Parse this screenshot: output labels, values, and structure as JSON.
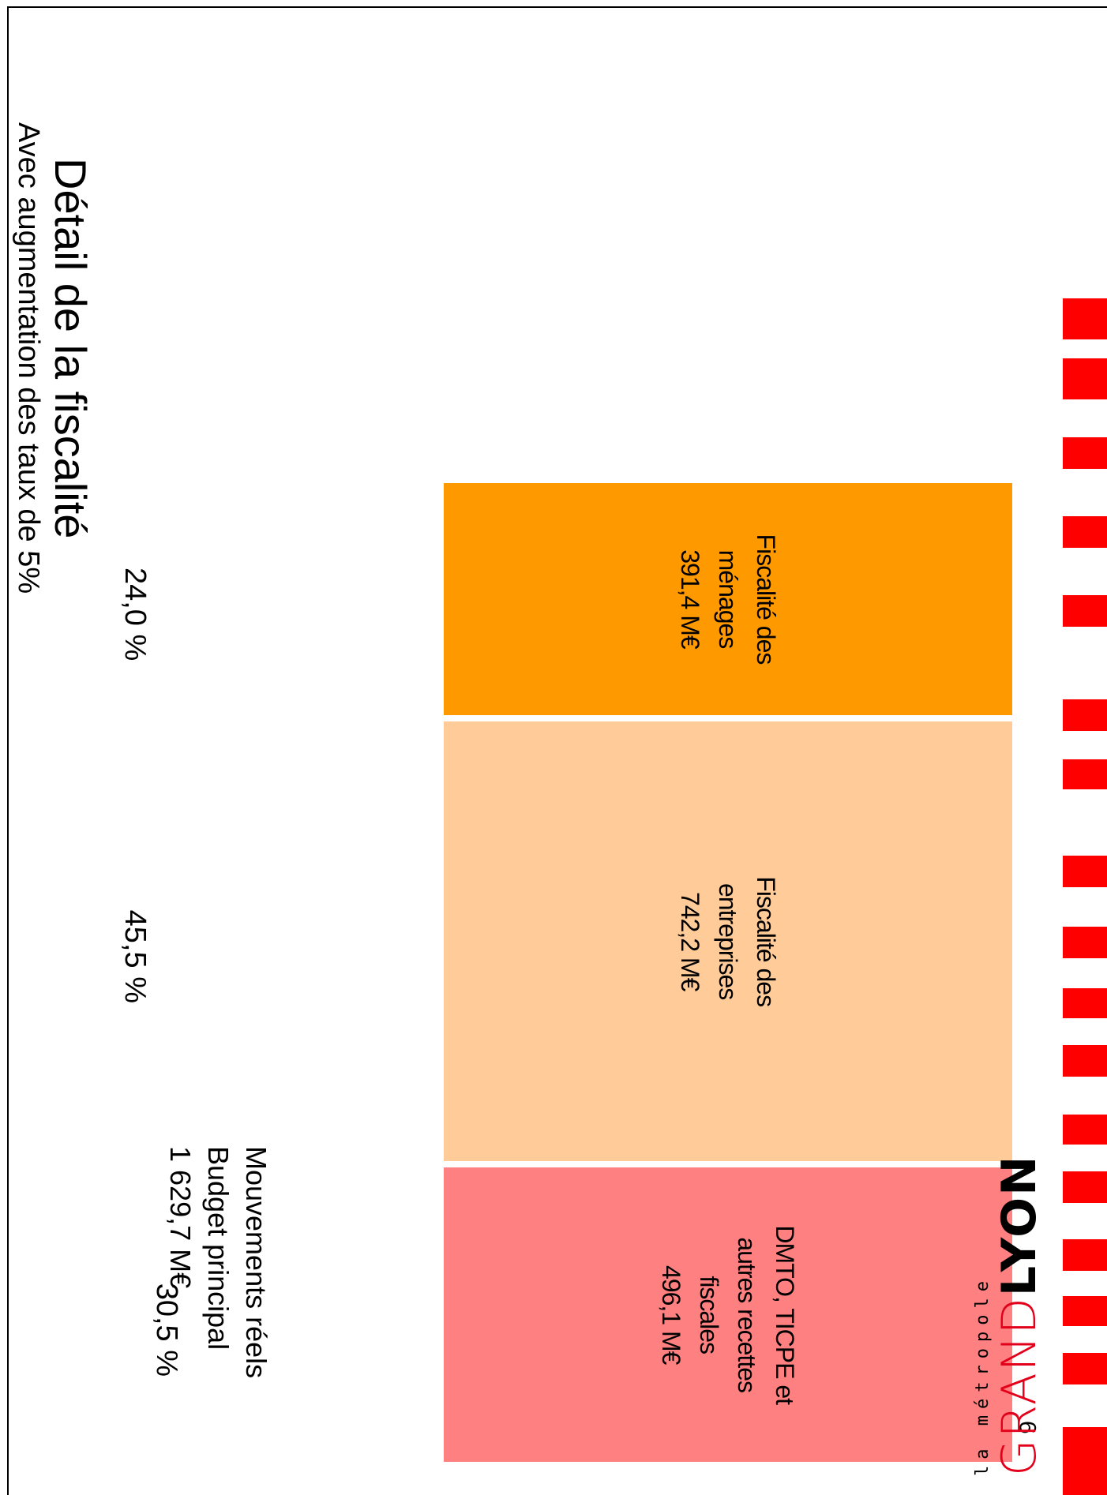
{
  "slide": {
    "title": "Détail de la fiscalité",
    "subtitle": "Avec augmentation des taux de 5%",
    "header_lines": [
      "Mouvements réels",
      "Budget principal",
      "1 629,7 M€"
    ],
    "page_number": "9",
    "logo": {
      "sub": "la métropole",
      "grand": "GRAND",
      "lyon": "LYON"
    }
  },
  "colors": {
    "menages": "#ff9900",
    "entreprises": "#ffcc99",
    "dmto": "#ff8080",
    "stripe": "#ff0000",
    "brand_red": "#e2001a"
  },
  "chart_data": {
    "type": "bar",
    "stacked": true,
    "total": {
      "label": "Budget principal",
      "value": 1629.7,
      "unit": "M€"
    },
    "segments": [
      {
        "lines": [
          "Fiscalité des",
          "ménages",
          "391,4 M€"
        ],
        "value": 391.4,
        "percent_label": "24,0 %",
        "percent": 24.0
      },
      {
        "lines": [
          "Fiscalité des",
          "entreprises",
          "742,2 M€"
        ],
        "value": 742.2,
        "percent_label": "45,5 %",
        "percent": 45.5
      },
      {
        "lines": [
          "DMTO, TICPE et",
          "autres recettes",
          "fiscales",
          "496,1 M€"
        ],
        "value": 496.1,
        "percent_label": "30,5 %",
        "percent": 30.5
      }
    ]
  }
}
